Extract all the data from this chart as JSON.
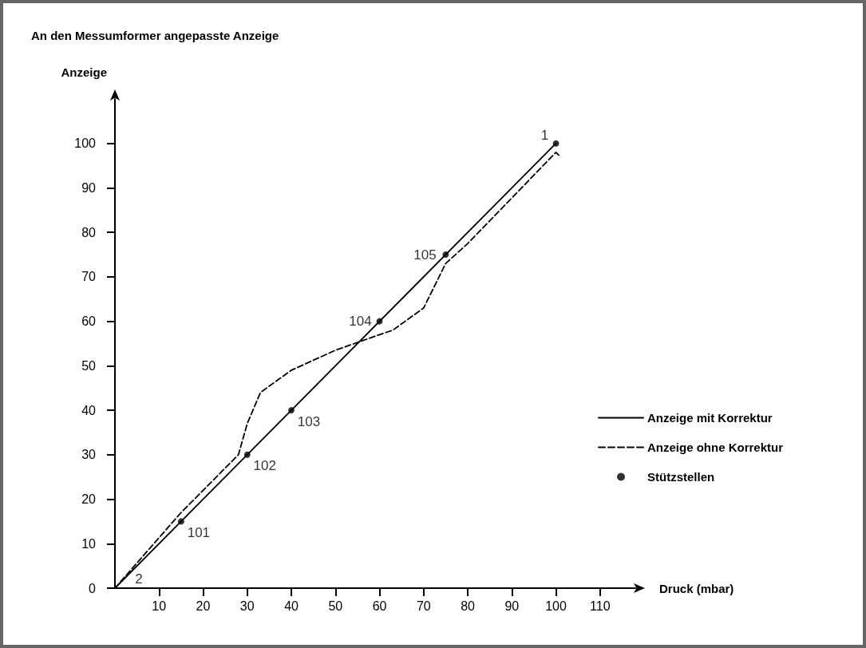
{
  "chart_data": {
    "type": "line",
    "title": "An den Messumformer angepasste Anzeige",
    "xlabel": "Druck (mbar)",
    "ylabel": "Anzeige",
    "xlim": [
      0,
      118
    ],
    "ylim": [
      0,
      110
    ],
    "xticks": [
      10,
      20,
      30,
      40,
      50,
      60,
      70,
      80,
      90,
      100,
      110
    ],
    "yticks": [
      0,
      10,
      20,
      30,
      40,
      50,
      60,
      70,
      80,
      90,
      100
    ],
    "grid": false,
    "legend": "right",
    "series": [
      {
        "name": "Anzeige mit Korrektur",
        "color": "#000000",
        "line_style": "solid",
        "marker": "none",
        "x": [
          0,
          100
        ],
        "values": [
          0,
          100
        ]
      },
      {
        "name": "Anzeige ohne Korrektur",
        "color": "#000000",
        "line_style": "dashed",
        "marker": "none",
        "x": [
          0,
          15,
          28,
          30,
          33,
          40,
          50,
          60,
          63,
          70,
          75,
          80,
          100,
          101
        ],
        "values": [
          0,
          17,
          30,
          37,
          44,
          49,
          53.5,
          57,
          58,
          63,
          73,
          77.5,
          98,
          97
        ]
      },
      {
        "name": "Stützstellen",
        "type": "scatter",
        "color": "#000000",
        "marker": "circle",
        "x": [
          15,
          30,
          40,
          60,
          75,
          100
        ],
        "values": [
          15,
          30,
          40,
          60,
          75,
          100
        ]
      }
    ],
    "annotations": [
      {
        "text": "2",
        "x": 0,
        "y": 0
      },
      {
        "text": "101",
        "x": 15,
        "y": 15
      },
      {
        "text": "102",
        "x": 30,
        "y": 30
      },
      {
        "text": "103",
        "x": 40,
        "y": 40
      },
      {
        "text": "104",
        "x": 60,
        "y": 60
      },
      {
        "text": "105",
        "x": 75,
        "y": 75
      },
      {
        "text": "1",
        "x": 100,
        "y": 100
      }
    ]
  }
}
